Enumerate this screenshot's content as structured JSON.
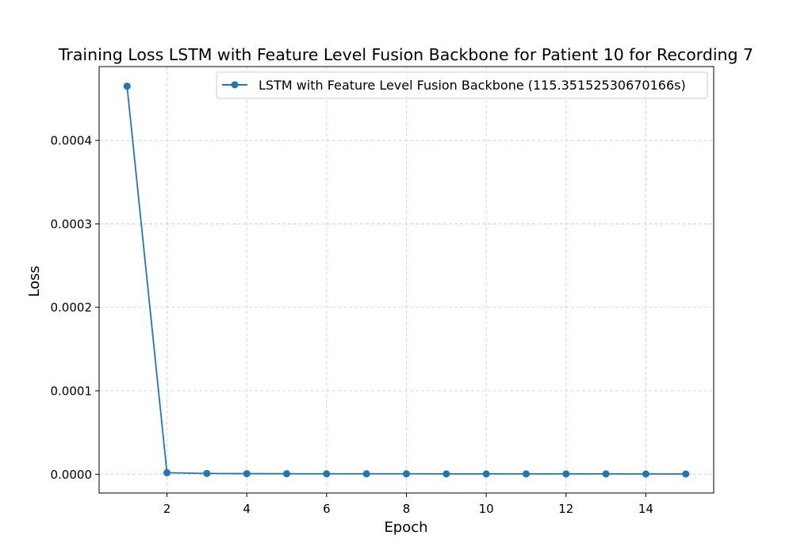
{
  "chart_data": {
    "type": "line",
    "title": "Training Loss LSTM with Feature Level Fusion Backbone for Patient 10 for Recording 7",
    "xlabel": "Epoch",
    "ylabel": "Loss",
    "xlim": [
      0.3,
      15.7
    ],
    "ylim": [
      -2.25e-05,
      0.0004885
    ],
    "xticks": [
      2,
      4,
      6,
      8,
      10,
      12,
      14
    ],
    "xtick_labels": [
      "2",
      "4",
      "6",
      "8",
      "10",
      "12",
      "14"
    ],
    "yticks": [
      0.0,
      0.0001,
      0.0002,
      0.0003,
      0.0004
    ],
    "ytick_labels": [
      "0.0000",
      "0.0001",
      "0.0002",
      "0.0003",
      "0.0004"
    ],
    "grid": true,
    "legend_position": "top-right",
    "series": [
      {
        "name": "LSTM with Feature Level Fusion Backbone (115.35152530670166s)",
        "color": "#1f77b4",
        "marker": "circle",
        "x": [
          1,
          2,
          3,
          4,
          5,
          6,
          7,
          8,
          9,
          10,
          11,
          12,
          13,
          14,
          15
        ],
        "y": [
          0.000465,
          1.8e-06,
          9e-07,
          7e-07,
          6e-07,
          5e-07,
          5e-07,
          5e-07,
          4e-07,
          4e-07,
          4e-07,
          4e-07,
          4e-07,
          3e-07,
          3e-07
        ]
      }
    ]
  }
}
